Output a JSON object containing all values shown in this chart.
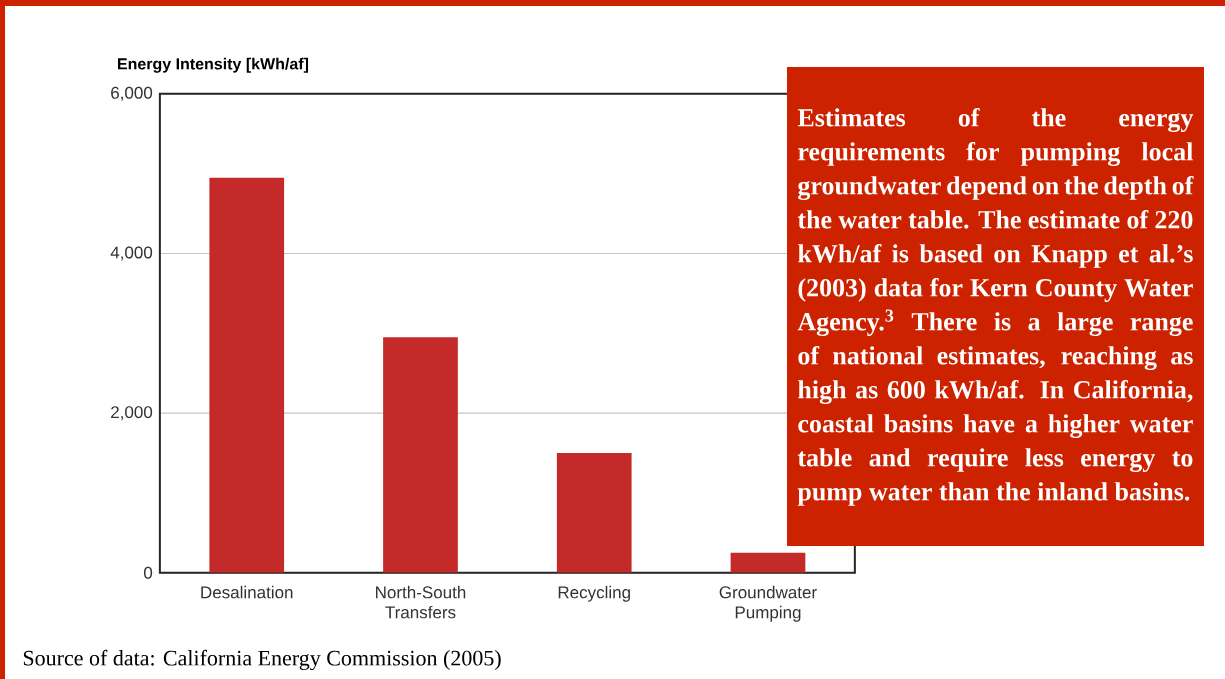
{
  "chart_data": {
    "type": "bar",
    "ylabel": "Energy Intensity [kWh/af]",
    "categories": [
      "Desalination",
      "North-South Transfers",
      "Recycling",
      "Groundwater Pumping"
    ],
    "values": [
      4950,
      2950,
      1500,
      250
    ],
    "color": "#c42a2a",
    "ylim": [
      0,
      6000
    ],
    "yticks": [
      0,
      {
        "value": 2000,
        "label": "2,000"
      },
      {
        "value": 4000,
        "label": "4,000"
      },
      {
        "value": 6000,
        "label": "6,000"
      }
    ],
    "grid": "y",
    "annotations": [
      "Estimates of the energy requirements for pumping local groundwater depend on the depth of the water table. The estimate of 220 kWh/af is based on Knapp et al.’s (2003) data for Kern County Water Agency.$^{3}$ There is a large range of national estimates, reaching as high as 600 kWh/af. In California, coastal basins have a higher water table and require less energy to pump water than the inland basins.",
      "Source of data: California Energy Commission (2005)"
    ]
  }
}
